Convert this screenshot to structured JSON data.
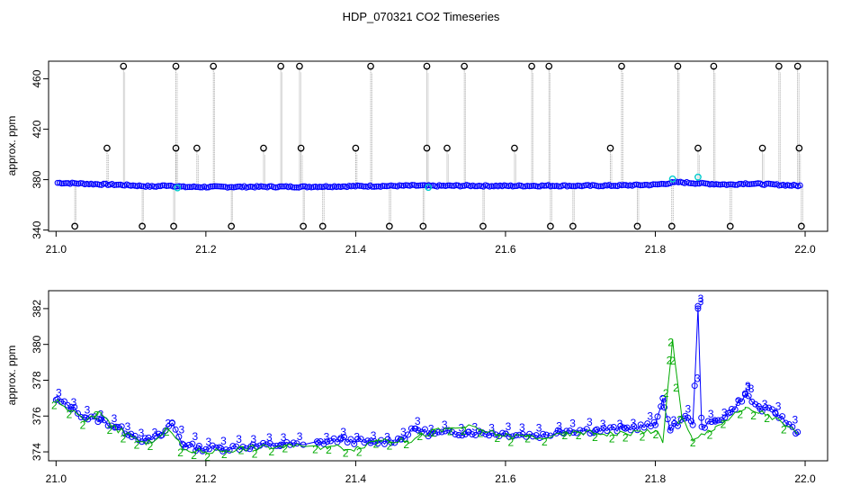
{
  "title": "HDP_070321  CO2 Timeseries",
  "chart_data": [
    {
      "type": "scatter",
      "ylabel": "approx. ppm",
      "xlim": [
        20.99,
        22.03
      ],
      "ylim": [
        339,
        474
      ],
      "xticks": [
        21.0,
        21.2,
        21.4,
        21.6,
        21.8,
        22.0
      ],
      "xtick_labels": [
        "21.0",
        "21.2",
        "21.4",
        "21.6",
        "21.8",
        "22.0"
      ],
      "yticks": [
        340,
        380,
        420,
        460
      ],
      "ytick_labels": [
        "340",
        "380",
        "420",
        "460"
      ],
      "colors": {
        "main": "#0000ff",
        "spike": "#000000",
        "marker_alt": "#00cccc",
        "line": "#888888"
      },
      "baseline": [
        [
          21.0,
          377.5
        ],
        [
          21.03,
          377.0
        ],
        [
          21.05,
          376.5
        ],
        [
          21.08,
          376.0
        ],
        [
          21.1,
          375.5
        ],
        [
          21.13,
          374.5
        ],
        [
          21.15,
          375.5
        ],
        [
          21.17,
          374.2
        ],
        [
          21.2,
          374.2
        ],
        [
          21.25,
          374.3
        ],
        [
          21.3,
          374.4
        ],
        [
          21.33,
          374.3
        ],
        [
          21.35,
          374.5
        ],
        [
          21.4,
          374.8
        ],
        [
          21.45,
          375.0
        ],
        [
          21.48,
          375.3
        ],
        [
          21.5,
          375.0
        ],
        [
          21.55,
          375.2
        ],
        [
          21.6,
          375.0
        ],
        [
          21.66,
          375.2
        ],
        [
          21.7,
          375.1
        ],
        [
          21.75,
          375.3
        ],
        [
          21.8,
          376.0
        ],
        [
          21.83,
          378.0
        ],
        [
          21.86,
          377.0
        ],
        [
          21.9,
          376.0
        ],
        [
          21.92,
          377.0
        ],
        [
          21.95,
          376.3
        ],
        [
          21.99,
          375.2
        ]
      ],
      "highlights": [
        [
          21.162,
          373.5
        ],
        [
          21.497,
          373.8
        ],
        [
          21.823,
          380.5
        ],
        [
          21.857,
          382.0
        ]
      ],
      "spikes_top": [
        21.09,
        21.16,
        21.21,
        21.3,
        21.325,
        21.42,
        21.495,
        21.545,
        21.635,
        21.658,
        21.755,
        21.83,
        21.878,
        21.965,
        21.99
      ],
      "spikes_mid": [
        21.068,
        21.16,
        21.188,
        21.277,
        21.327,
        21.4,
        21.495,
        21.522,
        21.612,
        21.74,
        21.857,
        21.943,
        21.992
      ],
      "spikes_bottom": [
        21.025,
        21.115,
        21.157,
        21.234,
        21.33,
        21.356,
        21.445,
        21.49,
        21.57,
        21.66,
        21.69,
        21.776,
        21.822,
        21.9,
        21.995
      ],
      "spike_levels": {
        "top": 470,
        "mid": 405,
        "bottom": 343
      }
    },
    {
      "type": "line",
      "ylabel": "approx. ppm",
      "xlim": [
        20.99,
        22.03
      ],
      "ylim": [
        373.5,
        383.0
      ],
      "xticks": [
        21.0,
        21.2,
        21.4,
        21.6,
        21.8,
        22.0
      ],
      "xtick_labels": [
        "21.0",
        "21.2",
        "21.4",
        "21.6",
        "21.8",
        "22.0"
      ],
      "yticks": [
        374,
        376,
        378,
        380,
        382
      ],
      "ytick_labels": [
        "374",
        "376",
        "378",
        "380",
        "382"
      ],
      "series": [
        {
          "color": "#0000ff",
          "marker_text": "3",
          "points": [
            [
              21.0,
              376.9
            ],
            [
              21.02,
              376.5
            ],
            [
              21.04,
              375.9
            ],
            [
              21.06,
              375.8
            ],
            [
              21.08,
              375.4
            ],
            [
              21.1,
              375.0
            ],
            [
              21.12,
              374.6
            ],
            [
              21.14,
              374.9
            ],
            [
              21.155,
              375.6
            ],
            [
              21.17,
              374.4
            ],
            [
              21.19,
              374.2
            ],
            [
              21.22,
              374.2
            ],
            [
              21.26,
              374.3
            ],
            [
              21.3,
              374.4
            ],
            [
              21.33,
              374.4
            ],
            [
              21.35,
              374.5
            ],
            [
              21.38,
              374.7
            ],
            [
              21.42,
              374.5
            ],
            [
              21.46,
              374.7
            ],
            [
              21.48,
              375.3
            ],
            [
              21.5,
              375.0
            ],
            [
              21.55,
              375.1
            ],
            [
              21.6,
              375.0
            ],
            [
              21.66,
              374.9
            ],
            [
              21.67,
              375.2
            ],
            [
              21.72,
              375.2
            ],
            [
              21.76,
              375.3
            ],
            [
              21.8,
              375.5
            ],
            [
              21.81,
              377.0
            ],
            [
              21.82,
              375.2
            ],
            [
              21.84,
              376.0
            ],
            [
              21.85,
              375.5
            ],
            [
              21.857,
              382.0
            ],
            [
              21.862,
              375.4
            ],
            [
              21.88,
              375.7
            ],
            [
              21.9,
              376.2
            ],
            [
              21.92,
              377.2
            ],
            [
              21.94,
              376.4
            ],
            [
              21.96,
              376.2
            ],
            [
              21.99,
              375.1
            ]
          ]
        },
        {
          "color": "#00aa00",
          "marker_text": "2",
          "points": [
            [
              21.0,
              376.8
            ],
            [
              21.02,
              376.3
            ],
            [
              21.04,
              375.7
            ],
            [
              21.06,
              376.2
            ],
            [
              21.08,
              375.3
            ],
            [
              21.1,
              374.9
            ],
            [
              21.12,
              374.4
            ],
            [
              21.15,
              375.3
            ],
            [
              21.17,
              374.1
            ],
            [
              21.2,
              374.0
            ],
            [
              21.25,
              374.2
            ],
            [
              21.3,
              374.3
            ],
            [
              21.33,
              374.3
            ],
            [
              21.36,
              374.3
            ],
            [
              21.4,
              374.2
            ],
            [
              21.43,
              374.7
            ],
            [
              21.47,
              374.6
            ],
            [
              21.5,
              375.1
            ],
            [
              21.545,
              375.4
            ],
            [
              21.6,
              374.9
            ],
            [
              21.66,
              374.8
            ],
            [
              21.7,
              375.1
            ],
            [
              21.75,
              375.0
            ],
            [
              21.8,
              375.2
            ],
            [
              21.81,
              374.5
            ],
            [
              21.823,
              380.3
            ],
            [
              21.835,
              376.0
            ],
            [
              21.85,
              374.6
            ],
            [
              21.88,
              375.4
            ],
            [
              21.92,
              376.4
            ],
            [
              21.95,
              376.1
            ],
            [
              21.99,
              375.0
            ]
          ]
        }
      ]
    }
  ]
}
